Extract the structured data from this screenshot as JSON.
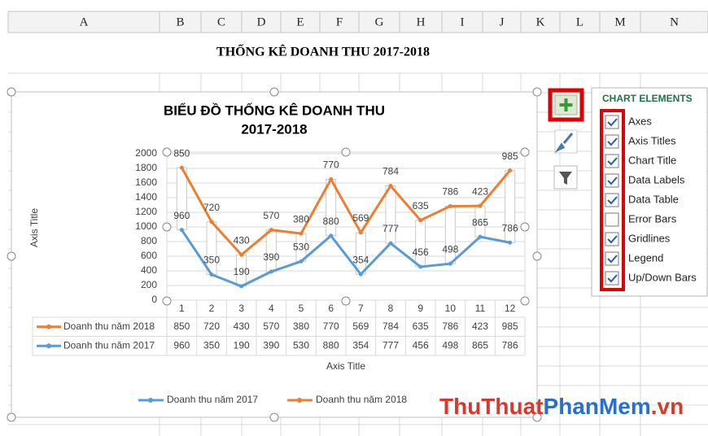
{
  "sheet": {
    "columns": [
      "A",
      "B",
      "C",
      "D",
      "E",
      "F",
      "G",
      "H",
      "I",
      "J",
      "K",
      "L",
      "M",
      "N"
    ],
    "title": "THỐNG KÊ DOANH THU 2017-2018"
  },
  "chart_data": {
    "type": "line",
    "stacked": true,
    "title": [
      "BIỂU ĐỒ THỐNG KÊ DOANH THU",
      "2017-2018"
    ],
    "x_label": "Axis Title",
    "y_label": "Axis Title",
    "categories": [
      "1",
      "2",
      "3",
      "4",
      "5",
      "6",
      "7",
      "8",
      "9",
      "10",
      "11",
      "12"
    ],
    "series": [
      {
        "name": "Doanh thu năm 2017",
        "color": "#5b9bd5",
        "values": [
          960,
          350,
          190,
          390,
          530,
          880,
          354,
          777,
          456,
          498,
          865,
          786
        ]
      },
      {
        "name": "Doanh thu năm 2018",
        "color": "#ed7d31",
        "values": [
          850,
          720,
          430,
          570,
          380,
          770,
          569,
          784,
          635,
          786,
          423,
          985
        ]
      }
    ],
    "ylim": [
      0,
      2000
    ],
    "yticks": [
      0,
      200,
      400,
      600,
      800,
      1000,
      1200,
      1400,
      1600,
      1800,
      2000
    ],
    "grid": true,
    "data_labels": true,
    "data_table": true,
    "up_down_bars": true,
    "legend": "bottom"
  },
  "chart_elements": {
    "title": "CHART ELEMENTS",
    "items": [
      {
        "label": "Axes",
        "checked": true
      },
      {
        "label": "Axis Titles",
        "checked": true
      },
      {
        "label": "Chart Title",
        "checked": true
      },
      {
        "label": "Data Labels",
        "checked": true
      },
      {
        "label": "Data Table",
        "checked": true
      },
      {
        "label": "Error Bars",
        "checked": false
      },
      {
        "label": "Gridlines",
        "checked": true
      },
      {
        "label": "Legend",
        "checked": true
      },
      {
        "label": "Up/Down Bars",
        "checked": true
      }
    ]
  },
  "watermark": [
    "ThuThuat",
    "PhanMem",
    ".vn"
  ]
}
